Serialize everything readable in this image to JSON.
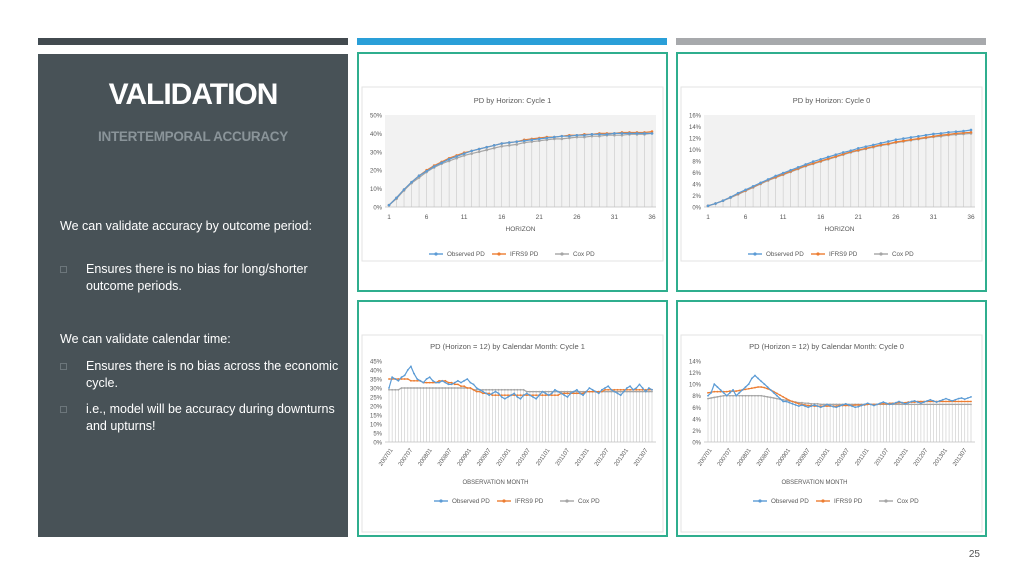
{
  "slide": {
    "title": "VALIDATION",
    "subtitle": "INTERTEMPORAL ACCURACY",
    "paragraph1": "We can validate accuracy by outcome period:",
    "bullet1": "Ensures there is no bias for long/shorter outcome periods.",
    "paragraph2": "We can validate calendar time:",
    "bullet2": "Ensures there is no bias across the economic cycle.",
    "bullet3": "i.e., model will be accuracy during downturns and upturns!",
    "page_number": "25"
  },
  "colors": {
    "observed": "#5b9bd5",
    "ifrs9": "#ed7d31",
    "cox": "#a5a5a5",
    "panel_border": "#2fae8e",
    "left_panel": "#485257"
  },
  "chart_data": [
    {
      "id": "pd_horizon_cycle1",
      "type": "line",
      "title": "PD by Horizon: Cycle 1",
      "xlabel": "HORIZON",
      "ylabel": "",
      "x": [
        1,
        2,
        3,
        4,
        5,
        6,
        7,
        8,
        9,
        10,
        11,
        12,
        13,
        14,
        15,
        16,
        17,
        18,
        19,
        20,
        21,
        22,
        23,
        24,
        25,
        26,
        27,
        28,
        29,
        30,
        31,
        32,
        33,
        34,
        35,
        36
      ],
      "x_tick_labels": [
        "1",
        "6",
        "11",
        "16",
        "21",
        "26",
        "31",
        "36"
      ],
      "y_tick_labels": [
        "0%",
        "10%",
        "20%",
        "30%",
        "40%",
        "50%"
      ],
      "ylim": [
        0,
        50
      ],
      "series": [
        {
          "name": "Observed PD",
          "color": "#5b9bd5",
          "values": [
            1,
            5,
            9.5,
            13.5,
            17,
            19.5,
            22,
            24,
            26,
            27.5,
            29,
            30.5,
            31.5,
            32.5,
            33.5,
            34.5,
            35,
            35.5,
            36,
            36.5,
            37,
            37.5,
            38,
            38.5,
            38.5,
            39,
            39,
            39.5,
            39.5,
            39.5,
            40,
            40,
            40,
            40,
            40,
            40
          ]
        },
        {
          "name": "IFRS9 PD",
          "color": "#ed7d31",
          "values": [
            1,
            5,
            9.5,
            13.5,
            17,
            20,
            22.5,
            24.5,
            26.5,
            28,
            29.5,
            30.5,
            31.5,
            32.5,
            33.5,
            34.5,
            35,
            35.5,
            36.5,
            37,
            37.5,
            38,
            38,
            38.5,
            39,
            39,
            39.5,
            39.5,
            40,
            40,
            40,
            40.5,
            40.5,
            40.5,
            40.5,
            41
          ]
        },
        {
          "name": "Cox PD",
          "color": "#a5a5a5",
          "values": [
            1,
            4.5,
            9,
            13,
            16,
            19,
            21.5,
            23.5,
            25,
            26.5,
            28,
            29,
            30,
            31,
            32,
            33,
            33.5,
            34,
            35,
            35.5,
            36,
            36.5,
            37,
            37,
            37.5,
            38,
            38,
            38.5,
            38.5,
            39,
            39,
            39,
            39.5,
            39.5,
            39.5,
            40
          ]
        }
      ],
      "legend": "bottom"
    },
    {
      "id": "pd_horizon_cycle0",
      "type": "line",
      "title": "PD by Horizon: Cycle 0",
      "xlabel": "HORIZON",
      "ylabel": "",
      "x": [
        1,
        2,
        3,
        4,
        5,
        6,
        7,
        8,
        9,
        10,
        11,
        12,
        13,
        14,
        15,
        16,
        17,
        18,
        19,
        20,
        21,
        22,
        23,
        24,
        25,
        26,
        27,
        28,
        29,
        30,
        31,
        32,
        33,
        34,
        35,
        36
      ],
      "x_tick_labels": [
        "1",
        "6",
        "11",
        "16",
        "21",
        "26",
        "31",
        "36"
      ],
      "y_tick_labels": [
        "0%",
        "2%",
        "4%",
        "6%",
        "8%",
        "10%",
        "12%",
        "14%",
        "16%"
      ],
      "ylim": [
        0,
        16
      ],
      "series": [
        {
          "name": "Observed PD",
          "color": "#5b9bd5",
          "values": [
            0.2,
            0.6,
            1.1,
            1.7,
            2.4,
            3.0,
            3.6,
            4.2,
            4.8,
            5.4,
            5.9,
            6.4,
            6.9,
            7.4,
            7.9,
            8.3,
            8.7,
            9.1,
            9.5,
            9.8,
            10.2,
            10.5,
            10.8,
            11.1,
            11.4,
            11.7,
            11.9,
            12.1,
            12.3,
            12.5,
            12.7,
            12.8,
            13.0,
            13.1,
            13.2,
            13.4
          ]
        },
        {
          "name": "IFRS9 PD",
          "color": "#ed7d31",
          "values": [
            0.2,
            0.6,
            1.1,
            1.7,
            2.3,
            2.9,
            3.5,
            4.1,
            4.7,
            5.2,
            5.7,
            6.2,
            6.7,
            7.2,
            7.6,
            8.0,
            8.4,
            8.8,
            9.2,
            9.6,
            9.9,
            10.2,
            10.5,
            10.8,
            11.0,
            11.3,
            11.5,
            11.7,
            11.9,
            12.1,
            12.3,
            12.5,
            12.6,
            12.8,
            12.9,
            13.0
          ]
        },
        {
          "name": "Cox PD",
          "color": "#a5a5a5",
          "values": [
            0.2,
            0.6,
            1.1,
            1.6,
            2.2,
            2.8,
            3.4,
            4.0,
            4.6,
            5.1,
            5.6,
            6.1,
            6.6,
            7.1,
            7.5,
            7.9,
            8.3,
            8.7,
            9.1,
            9.5,
            9.8,
            10.1,
            10.4,
            10.7,
            10.9,
            11.2,
            11.4,
            11.6,
            11.8,
            12.0,
            12.2,
            12.3,
            12.5,
            12.6,
            12.7,
            12.8
          ]
        }
      ],
      "legend": "bottom"
    },
    {
      "id": "pd_calendar_cycle1",
      "type": "line",
      "title": "PD (Horizon = 12) by Calendar Month: Cycle 1",
      "xlabel": "OBSERVATION MONTH",
      "ylabel": "",
      "x_tick_labels": [
        "200701",
        "200707",
        "200801",
        "200807",
        "200901",
        "200907",
        "201001",
        "201007",
        "201101",
        "201107",
        "201201",
        "201207",
        "201301",
        "201307"
      ],
      "y_tick_labels": [
        "0%",
        "5%",
        "10%",
        "15%",
        "20%",
        "25%",
        "30%",
        "35%",
        "40%",
        "45%"
      ],
      "ylim": [
        0,
        45
      ],
      "series": [
        {
          "name": "Observed PD",
          "color": "#5b9bd5",
          "values": [
            30,
            36,
            35,
            34,
            36,
            37,
            40,
            42,
            38,
            35,
            34,
            33,
            35,
            36,
            34,
            33,
            33,
            34,
            33,
            32,
            32,
            33,
            34,
            33,
            34,
            35,
            33,
            32,
            30,
            29,
            28,
            27,
            26,
            27,
            28,
            27,
            25,
            24,
            25,
            26,
            27,
            25,
            24,
            26,
            27,
            26,
            25,
            24,
            26,
            28,
            27,
            26,
            27,
            29,
            28,
            27,
            26,
            25,
            27,
            28,
            29,
            27,
            26,
            28,
            30,
            29,
            28,
            27,
            29,
            30,
            31,
            29,
            28,
            27,
            26,
            28,
            30,
            31,
            29,
            30,
            32,
            30,
            28,
            30,
            29
          ]
        },
        {
          "name": "IFRS9 PD",
          "color": "#ed7d31",
          "values": [
            35,
            35,
            35,
            35,
            35,
            35,
            35,
            34,
            34,
            34,
            34,
            33,
            33,
            33,
            33,
            33,
            34,
            34,
            34,
            33,
            33,
            32,
            32,
            31,
            31,
            30,
            30,
            29,
            28,
            28,
            27,
            27,
            27,
            26,
            26,
            26,
            26,
            26,
            26,
            26,
            26,
            26,
            26,
            26,
            26,
            26,
            26,
            26,
            26,
            26,
            26,
            26,
            26,
            26,
            26,
            27,
            27,
            27,
            27,
            27,
            27,
            27,
            27,
            28,
            28,
            28,
            28,
            28,
            28,
            29,
            29,
            29,
            29,
            29,
            29,
            29,
            29,
            29,
            29,
            29,
            29,
            29,
            29,
            29,
            29
          ]
        },
        {
          "name": "Cox PD",
          "color": "#a5a5a5",
          "values": [
            29,
            29,
            29,
            29,
            30,
            30,
            30,
            30,
            30,
            30,
            30,
            30,
            30,
            30,
            30,
            30,
            30,
            30,
            30,
            30,
            30,
            30,
            30,
            30,
            30,
            30,
            30,
            29,
            29,
            29,
            29,
            29,
            29,
            29,
            29,
            29,
            29,
            29,
            29,
            29,
            29,
            29,
            29,
            29,
            28,
            28,
            28,
            28,
            28,
            28,
            28,
            28,
            28,
            28,
            28,
            28,
            28,
            28,
            28,
            28,
            28,
            28,
            28,
            28,
            28,
            28,
            28,
            28,
            28,
            28,
            28,
            28,
            28,
            28,
            28,
            28,
            28,
            28,
            28,
            28,
            28,
            28,
            28,
            28,
            28
          ]
        }
      ],
      "legend": "bottom"
    },
    {
      "id": "pd_calendar_cycle0",
      "type": "line",
      "title": "PD (Horizon = 12) by Calendar Month: Cycle 0",
      "xlabel": "OBSERVATION MONTH",
      "ylabel": "",
      "x_tick_labels": [
        "200701",
        "200707",
        "200801",
        "200807",
        "200901",
        "200907",
        "201001",
        "201007",
        "201101",
        "201107",
        "201201",
        "201207",
        "201301",
        "201307"
      ],
      "y_tick_labels": [
        "0%",
        "2%",
        "4%",
        "6%",
        "8%",
        "10%",
        "12%",
        "14%"
      ],
      "ylim": [
        0,
        14
      ],
      "series": [
        {
          "name": "Observed PD",
          "color": "#5b9bd5",
          "values": [
            8,
            8.5,
            10,
            9.5,
            9,
            8.5,
            8,
            8.5,
            9,
            8,
            8.5,
            9,
            9.5,
            10,
            11,
            11.5,
            11,
            10.5,
            10,
            9.5,
            9,
            8.5,
            8,
            7.5,
            7,
            7,
            6.8,
            6.6,
            6.4,
            6.2,
            6.4,
            6.2,
            6,
            6.2,
            6.4,
            6.2,
            6,
            6.2,
            6.5,
            6.3,
            6.1,
            6,
            6.2,
            6.4,
            6.6,
            6.4,
            6.2,
            6,
            6.1,
            6.3,
            6.5,
            6.7,
            6.5,
            6.3,
            6.5,
            6.7,
            6.9,
            6.7,
            6.5,
            6.6,
            6.8,
            7,
            6.8,
            6.6,
            6.8,
            7,
            7.1,
            6.9,
            6.7,
            6.9,
            7.1,
            7.3,
            7.1,
            6.9,
            7.1,
            7.3,
            7.5,
            7.3,
            7.1,
            7.3,
            7.5,
            7.6,
            7.4,
            7.6,
            7.8
          ]
        },
        {
          "name": "IFRS9 PD",
          "color": "#ed7d31",
          "values": [
            8.5,
            8.6,
            8.7,
            8.7,
            8.7,
            8.7,
            8.7,
            8.8,
            8.8,
            8.8,
            8.9,
            9,
            9.1,
            9.2,
            9.3,
            9.4,
            9.5,
            9.5,
            9.4,
            9.2,
            9,
            8.7,
            8.4,
            8.1,
            7.8,
            7.5,
            7.2,
            7,
            6.8,
            6.6,
            6.5,
            6.4,
            6.3,
            6.3,
            6.2,
            6.2,
            6.2,
            6.2,
            6.2,
            6.2,
            6.2,
            6.2,
            6.3,
            6.3,
            6.3,
            6.3,
            6.3,
            6.4,
            6.4,
            6.4,
            6.4,
            6.5,
            6.5,
            6.5,
            6.5,
            6.6,
            6.6,
            6.6,
            6.7,
            6.7,
            6.7,
            6.8,
            6.8,
            6.8,
            6.9,
            6.9,
            6.9,
            7,
            7,
            7,
            7,
            7,
            7,
            7,
            7,
            7,
            7,
            7,
            7,
            7,
            7,
            7,
            7,
            7,
            7
          ]
        },
        {
          "name": "Cox PD",
          "color": "#a5a5a5",
          "values": [
            7.5,
            7.6,
            7.7,
            7.8,
            7.9,
            8,
            8,
            8,
            8,
            8,
            8,
            8,
            8,
            8,
            8,
            8,
            8,
            8,
            7.9,
            7.8,
            7.7,
            7.6,
            7.5,
            7.4,
            7.3,
            7.2,
            7.1,
            7,
            6.9,
            6.8,
            6.8,
            6.7,
            6.7,
            6.6,
            6.6,
            6.6,
            6.5,
            6.5,
            6.5,
            6.5,
            6.5,
            6.5,
            6.5,
            6.5,
            6.5,
            6.5,
            6.5,
            6.5,
            6.5,
            6.5,
            6.5,
            6.5,
            6.5,
            6.5,
            6.5,
            6.5,
            6.5,
            6.5,
            6.5,
            6.5,
            6.5,
            6.5,
            6.5,
            6.5,
            6.5,
            6.5,
            6.5,
            6.5,
            6.5,
            6.5,
            6.5,
            6.5,
            6.5,
            6.5,
            6.5,
            6.5,
            6.5,
            6.5,
            6.5,
            6.5,
            6.5,
            6.5,
            6.5,
            6.5,
            6.5
          ]
        }
      ],
      "legend": "bottom"
    }
  ]
}
